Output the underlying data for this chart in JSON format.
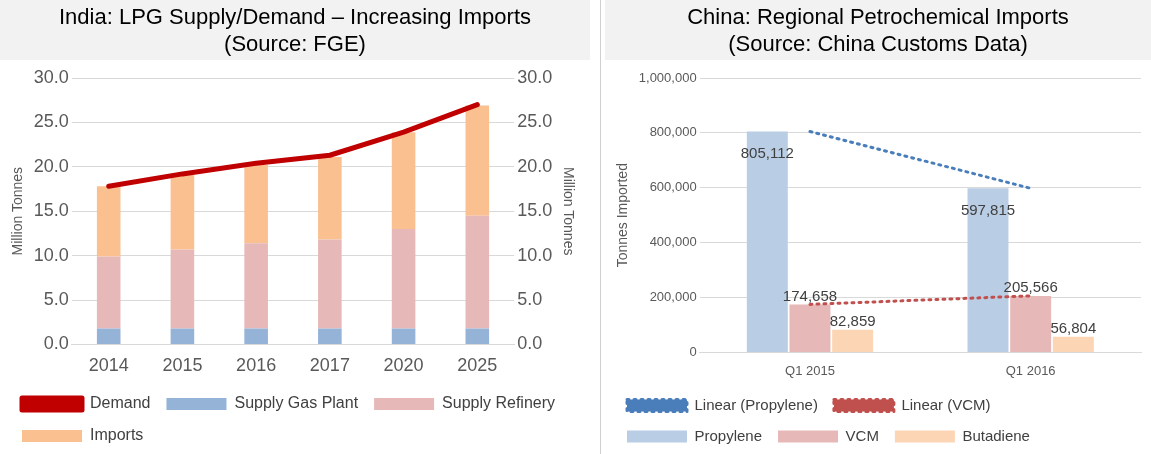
{
  "chart_data": [
    {
      "type": "bar",
      "title": "India: LPG Supply/Demand – Increasing Imports\n(Source: FGE)",
      "ylabel": "Million Tonnes",
      "y2label": "Million Tonnes",
      "stacked": true,
      "categories": [
        "2014",
        "2015",
        "2016",
        "2017",
        "2020",
        "2025"
      ],
      "series": [
        {
          "name": "Supply Gas Plant",
          "color": "#95b3d7",
          "values": [
            1.8,
            1.8,
            1.8,
            1.8,
            1.8,
            1.8
          ]
        },
        {
          "name": "Supply Refinery",
          "color": "#e6b9b8",
          "values": [
            8.1,
            8.9,
            9.6,
            10.0,
            11.2,
            12.7
          ]
        },
        {
          "name": "Imports",
          "color": "#fac090",
          "values": [
            7.9,
            8.4,
            8.8,
            9.3,
            10.9,
            12.4
          ]
        },
        {
          "name": "Demand",
          "type": "line",
          "axis": "y2",
          "color": "#c00000",
          "line_style": "solid",
          "values": [
            17.8,
            19.2,
            20.4,
            21.3,
            23.9,
            27.0
          ]
        }
      ],
      "ylim": [
        0,
        30
      ],
      "yticks": [
        {
          "value": 0,
          "label": "0.0"
        },
        {
          "value": 5,
          "label": "5.0"
        },
        {
          "value": 10,
          "label": "10.0"
        },
        {
          "value": 15,
          "label": "15.0"
        },
        {
          "value": 20,
          "label": "20.0"
        },
        {
          "value": 25,
          "label": "25.0"
        },
        {
          "value": 30,
          "label": "30.0"
        }
      ],
      "y2lim": [
        0,
        30
      ],
      "y2ticks": [
        {
          "value": 0,
          "label": "0.0"
        },
        {
          "value": 5,
          "label": "5.0"
        },
        {
          "value": 10,
          "label": "10.0"
        },
        {
          "value": 15,
          "label": "15.0"
        },
        {
          "value": 20,
          "label": "20.0"
        },
        {
          "value": 25,
          "label": "25.0"
        },
        {
          "value": 30,
          "label": "30.0"
        }
      ],
      "grid": "y",
      "legend": "bottom",
      "marker": "none"
    },
    {
      "type": "bar",
      "title": "China: Regional Petrochemical Imports\n(Source: China Customs Data)",
      "ylabel": "Tonnes Imported",
      "categories": [
        "Q1 2015",
        "Q1 2016"
      ],
      "series": [
        {
          "name": "Propylene",
          "color": "#b9cde5",
          "values": [
            805112,
            597815
          ],
          "value_labels": [
            "805,112",
            "597,815"
          ]
        },
        {
          "name": "VCM",
          "color": "#e6b9b8",
          "values": [
            174658,
            205566
          ],
          "value_labels": [
            "174,658",
            "205,566"
          ]
        },
        {
          "name": "Butadiene",
          "color": "#fcd5b5",
          "values": [
            82859,
            56804
          ],
          "value_labels": [
            "82,859",
            "56,804"
          ]
        },
        {
          "name": "Linear (Propylene)",
          "type": "line",
          "color": "#4a7ebb",
          "line_style": "dotted",
          "values": [
            805000,
            598000
          ]
        },
        {
          "name": "Linear (VCM)",
          "type": "line",
          "color": "#c0504d",
          "line_style": "dotted",
          "values": [
            175000,
            206000
          ]
        }
      ],
      "ylim": [
        0,
        1000000
      ],
      "yticks": [
        {
          "value": 0,
          "label": "0"
        },
        {
          "value": 200000,
          "label": "200,000"
        },
        {
          "value": 400000,
          "label": "400,000"
        },
        {
          "value": 600000,
          "label": "600,000"
        },
        {
          "value": 800000,
          "label": "800,000"
        },
        {
          "value": 1000000,
          "label": "1,000,000"
        }
      ],
      "grid": "y",
      "legend": "bottom",
      "marker": "none"
    }
  ]
}
